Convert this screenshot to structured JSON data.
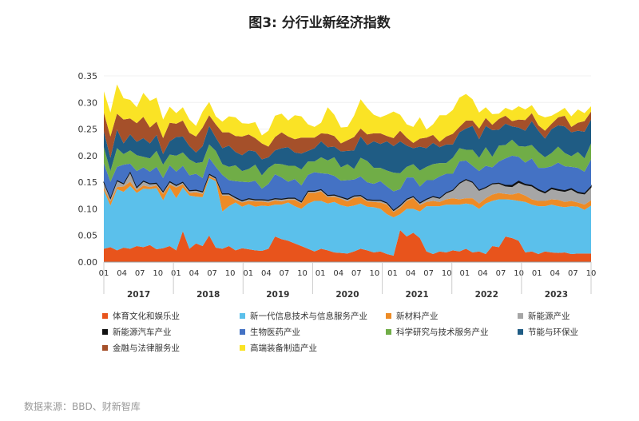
{
  "title": "图3: 分行业新经济指数",
  "source": "数据来源：BBD、财新智库",
  "chart_data": {
    "type": "area",
    "stacked": true,
    "ylim": [
      0,
      0.35
    ],
    "yticks": [
      "0.00",
      "0.05",
      "0.10",
      "0.15",
      "0.20",
      "0.25",
      "0.30",
      "0.35"
    ],
    "xticks": [
      "01",
      "04",
      "07",
      "10",
      "01",
      "04",
      "07",
      "10",
      "01",
      "04",
      "07",
      "10",
      "01",
      "04",
      "07",
      "10",
      "01",
      "04",
      "07",
      "10",
      "01",
      "04",
      "07",
      "10",
      "01",
      "04",
      "07",
      "10"
    ],
    "years": [
      "2017",
      "2018",
      "2019",
      "2020",
      "2021",
      "2022",
      "2023"
    ],
    "legend_position": "bottom",
    "series": [
      {
        "name": "体育文化和娱乐业",
        "color": "#e8541c",
        "values": [
          0.025,
          0.028,
          0.022,
          0.027,
          0.025,
          0.03,
          0.028,
          0.032,
          0.024,
          0.026,
          0.03,
          0.022,
          0.058,
          0.025,
          0.035,
          0.03,
          0.05,
          0.027,
          0.025,
          0.03,
          0.022,
          0.026,
          0.024,
          0.022,
          0.021,
          0.025,
          0.048,
          0.043,
          0.04,
          0.035,
          0.03,
          0.025,
          0.02,
          0.025,
          0.022,
          0.018,
          0.017,
          0.016,
          0.02,
          0.025,
          0.022,
          0.018,
          0.02,
          0.015,
          0.012,
          0.06,
          0.048,
          0.055,
          0.045,
          0.02,
          0.015,
          0.02,
          0.018,
          0.022,
          0.02,
          0.025,
          0.018,
          0.02,
          0.015,
          0.03,
          0.028,
          0.048,
          0.045,
          0.04,
          0.018,
          0.02,
          0.015,
          0.02,
          0.018,
          0.017,
          0.018,
          0.015,
          0.016,
          0.016,
          0.016
        ]
      },
      {
        "name": "新一代信息技术与信息服务产业",
        "color": "#5bc0eb",
        "values": [
          0.11,
          0.078,
          0.115,
          0.105,
          0.118,
          0.1,
          0.11,
          0.105,
          0.115,
          0.09,
          0.11,
          0.098,
          0.082,
          0.1,
          0.088,
          0.092,
          0.108,
          0.125,
          0.07,
          0.075,
          0.09,
          0.078,
          0.085,
          0.082,
          0.085,
          0.08,
          0.06,
          0.065,
          0.072,
          0.07,
          0.07,
          0.085,
          0.095,
          0.09,
          0.088,
          0.095,
          0.09,
          0.088,
          0.086,
          0.085,
          0.082,
          0.085,
          0.08,
          0.075,
          0.072,
          0.03,
          0.052,
          0.045,
          0.05,
          0.085,
          0.09,
          0.085,
          0.09,
          0.086,
          0.088,
          0.085,
          0.09,
          0.08,
          0.095,
          0.085,
          0.09,
          0.07,
          0.072,
          0.075,
          0.095,
          0.088,
          0.09,
          0.085,
          0.09,
          0.088,
          0.085,
          0.09,
          0.088,
          0.082,
          0.09
        ]
      },
      {
        "name": "新材料产业",
        "color": "#ed8b26",
        "values": [
          0.005,
          0.008,
          0.004,
          0.01,
          0.008,
          0.005,
          0.006,
          0.004,
          0.005,
          0.012,
          0.006,
          0.02,
          0.006,
          0.005,
          0.008,
          0.006,
          0.004,
          0.003,
          0.03,
          0.02,
          0.005,
          0.008,
          0.006,
          0.01,
          0.008,
          0.007,
          0.008,
          0.006,
          0.005,
          0.012,
          0.01,
          0.02,
          0.015,
          0.018,
          0.012,
          0.01,
          0.012,
          0.01,
          0.015,
          0.012,
          0.01,
          0.01,
          0.012,
          0.018,
          0.01,
          0.012,
          0.015,
          0.02,
          0.012,
          0.008,
          0.01,
          0.008,
          0.01,
          0.012,
          0.01,
          0.01,
          0.012,
          0.01,
          0.01,
          0.012,
          0.012,
          0.01,
          0.01,
          0.015,
          0.012,
          0.01,
          0.01,
          0.01,
          0.01,
          0.012,
          0.01,
          0.01,
          0.008,
          0.01,
          0.01
        ]
      },
      {
        "name": "新能源产业",
        "color": "#a6a6a6",
        "values": [
          0.01,
          0.006,
          0.012,
          0.005,
          0.018,
          0.005,
          0.008,
          0.006,
          0.004,
          0.004,
          0.005,
          0.004,
          0.004,
          0.004,
          0.004,
          0.004,
          0.003,
          0.003,
          0.003,
          0.003,
          0.004,
          0.003,
          0.004,
          0.003,
          0.003,
          0.004,
          0.003,
          0.004,
          0.003,
          0.003,
          0.003,
          0.003,
          0.003,
          0.003,
          0.003,
          0.003,
          0.003,
          0.004,
          0.003,
          0.003,
          0.003,
          0.003,
          0.004,
          0.003,
          0.003,
          0.004,
          0.003,
          0.003,
          0.004,
          0.005,
          0.008,
          0.007,
          0.012,
          0.015,
          0.03,
          0.035,
          0.03,
          0.025,
          0.02,
          0.02,
          0.018,
          0.015,
          0.015,
          0.02,
          0.02,
          0.025,
          0.02,
          0.015,
          0.02,
          0.018,
          0.02,
          0.022,
          0.018,
          0.02,
          0.025
        ]
      },
      {
        "name": "新能源汽车产业",
        "color": "#111111",
        "values": [
          0.001,
          0.001,
          0.001,
          0.001,
          0.001,
          0.001,
          0.001,
          0.001,
          0.001,
          0.001,
          0.001,
          0.001,
          0.001,
          0.001,
          0.001,
          0.001,
          0.001,
          0.001,
          0.001,
          0.001,
          0.001,
          0.001,
          0.001,
          0.001,
          0.001,
          0.001,
          0.001,
          0.001,
          0.001,
          0.001,
          0.001,
          0.001,
          0.001,
          0.001,
          0.001,
          0.001,
          0.001,
          0.001,
          0.001,
          0.001,
          0.001,
          0.001,
          0.001,
          0.001,
          0.001,
          0.001,
          0.001,
          0.001,
          0.001,
          0.001,
          0.001,
          0.001,
          0.001,
          0.001,
          0.001,
          0.001,
          0.001,
          0.001,
          0.001,
          0.001,
          0.001,
          0.002,
          0.003,
          0.003,
          0.002,
          0.002,
          0.002,
          0.002,
          0.002,
          0.002,
          0.002,
          0.002,
          0.002,
          0.002,
          0.002
        ]
      },
      {
        "name": "生物医药产业",
        "color": "#4472c4",
        "values": [
          0.035,
          0.03,
          0.025,
          0.035,
          0.015,
          0.03,
          0.025,
          0.022,
          0.03,
          0.025,
          0.03,
          0.025,
          0.03,
          0.028,
          0.03,
          0.025,
          0.03,
          0.02,
          0.035,
          0.025,
          0.03,
          0.035,
          0.03,
          0.035,
          0.02,
          0.03,
          0.045,
          0.04,
          0.03,
          0.035,
          0.03,
          0.03,
          0.035,
          0.03,
          0.04,
          0.035,
          0.03,
          0.035,
          0.03,
          0.035,
          0.032,
          0.03,
          0.035,
          0.03,
          0.035,
          0.03,
          0.04,
          0.035,
          0.03,
          0.035,
          0.03,
          0.04,
          0.035,
          0.03,
          0.04,
          0.035,
          0.03,
          0.035,
          0.04,
          0.03,
          0.04,
          0.05,
          0.055,
          0.045,
          0.04,
          0.05,
          0.04,
          0.045,
          0.04,
          0.05,
          0.045,
          0.04,
          0.045,
          0.04,
          0.05
        ]
      },
      {
        "name": "科学研究与技术服务产业",
        "color": "#70ad47",
        "values": [
          0.03,
          0.02,
          0.035,
          0.02,
          0.025,
          0.03,
          0.02,
          0.025,
          0.03,
          0.025,
          0.02,
          0.03,
          0.025,
          0.03,
          0.02,
          0.03,
          0.025,
          0.03,
          0.02,
          0.025,
          0.03,
          0.02,
          0.025,
          0.03,
          0.025,
          0.03,
          0.02,
          0.025,
          0.03,
          0.025,
          0.03,
          0.025,
          0.02,
          0.03,
          0.025,
          0.035,
          0.025,
          0.03,
          0.02,
          0.035,
          0.04,
          0.03,
          0.025,
          0.03,
          0.035,
          0.03,
          0.02,
          0.025,
          0.03,
          0.025,
          0.03,
          0.025,
          0.02,
          0.03,
          0.025,
          0.02,
          0.03,
          0.025,
          0.035,
          0.02,
          0.03,
          0.025,
          0.03,
          0.02,
          0.03,
          0.025,
          0.03,
          0.02,
          0.025,
          0.03,
          0.025,
          0.02,
          0.03,
          0.025,
          0.03
        ]
      },
      {
        "name": "节能与环保业",
        "color": "#1f5c84",
        "values": [
          0.03,
          0.025,
          0.035,
          0.02,
          0.03,
          0.025,
          0.035,
          0.028,
          0.03,
          0.02,
          0.025,
          0.035,
          0.03,
          0.025,
          0.02,
          0.03,
          0.035,
          0.025,
          0.03,
          0.04,
          0.025,
          0.03,
          0.035,
          0.025,
          0.03,
          0.02,
          0.025,
          0.03,
          0.035,
          0.025,
          0.03,
          0.02,
          0.025,
          0.03,
          0.025,
          0.02,
          0.03,
          0.025,
          0.035,
          0.04,
          0.03,
          0.05,
          0.045,
          0.055,
          0.05,
          0.06,
          0.04,
          0.03,
          0.045,
          0.035,
          0.04,
          0.03,
          0.035,
          0.025,
          0.03,
          0.04,
          0.045,
          0.035,
          0.04,
          0.05,
          0.03,
          0.04,
          0.025,
          0.035,
          0.03,
          0.045,
          0.04,
          0.035,
          0.045,
          0.04,
          0.05,
          0.045,
          0.04,
          0.05,
          0.045
        ]
      },
      {
        "name": "金融与法律服务业",
        "color": "#a5502a",
        "values": [
          0.035,
          0.04,
          0.03,
          0.045,
          0.03,
          0.035,
          0.04,
          0.03,
          0.025,
          0.03,
          0.035,
          0.025,
          0.03,
          0.025,
          0.03,
          0.035,
          0.02,
          0.025,
          0.03,
          0.025,
          0.03,
          0.035,
          0.03,
          0.025,
          0.03,
          0.02,
          0.025,
          0.03,
          0.02,
          0.025,
          0.03,
          0.025,
          0.02,
          0.015,
          0.025,
          0.02,
          0.015,
          0.02,
          0.025,
          0.015,
          0.02,
          0.015,
          0.02,
          0.01,
          0.015,
          0.02,
          0.015,
          0.01,
          0.015,
          0.02,
          0.015,
          0.01,
          0.015,
          0.02,
          0.01,
          0.015,
          0.01,
          0.02,
          0.015,
          0.01,
          0.02,
          0.015,
          0.01,
          0.015,
          0.02,
          0.015,
          0.01,
          0.015,
          0.01,
          0.015,
          0.02,
          0.01,
          0.015,
          0.02,
          0.015
        ]
      },
      {
        "name": "高端装备制造产业",
        "color": "#fae325",
        "values": [
          0.04,
          0.045,
          0.055,
          0.04,
          0.035,
          0.03,
          0.045,
          0.05,
          0.045,
          0.035,
          0.03,
          0.02,
          0.025,
          0.025,
          0.02,
          0.03,
          0.025,
          0.015,
          0.02,
          0.03,
          0.035,
          0.025,
          0.02,
          0.03,
          0.015,
          0.03,
          0.04,
          0.035,
          0.03,
          0.045,
          0.04,
          0.025,
          0.02,
          0.02,
          0.05,
          0.04,
          0.03,
          0.025,
          0.04,
          0.055,
          0.05,
          0.035,
          0.03,
          0.04,
          0.05,
          0.03,
          0.025,
          0.03,
          0.04,
          0.015,
          0.02,
          0.05,
          0.04,
          0.045,
          0.055,
          0.05,
          0.04,
          0.03,
          0.02,
          0.02,
          0.01,
          0.015,
          0.02,
          0.025,
          0.02,
          0.015,
          0.02,
          0.025,
          0.015,
          0.01,
          0.015,
          0.02,
          0.025,
          0.015,
          0.01
        ]
      }
    ]
  }
}
